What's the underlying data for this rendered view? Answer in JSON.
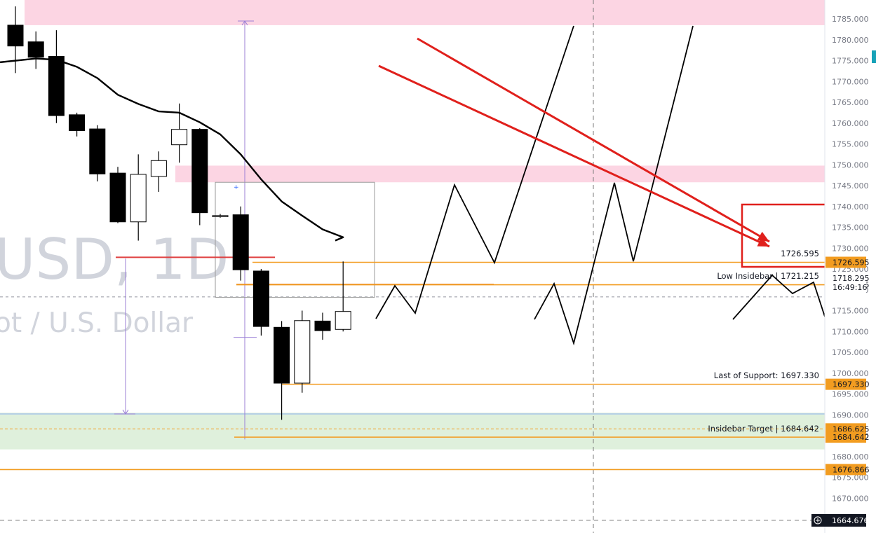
{
  "watermark": {
    "symbol": "USD, 1D",
    "description": "ot / U.S. Dollar"
  },
  "chart_data": {
    "type": "candlestick",
    "y_axis": {
      "range": [
        1664.676,
        1788
      ],
      "ticks": [
        1785,
        1780,
        1775,
        1770,
        1765,
        1760,
        1755,
        1750,
        1745,
        1740,
        1735,
        1730,
        1725,
        1720,
        1715,
        1710,
        1705,
        1700,
        1695,
        1690,
        1685,
        1680,
        1675,
        1670
      ],
      "tick_labels": [
        "1785.000",
        "1780.000",
        "1775.000",
        "1770.000",
        "1765.000",
        "1760.000",
        "1755.000",
        "1750.000",
        "1745.000",
        "1740.000",
        "1735.000",
        "1730.000",
        "1725.000",
        "1720.000",
        "1715.000",
        "1710.000",
        "1705.000",
        "1700.000",
        "1695.000",
        "1690.000",
        "1685.000",
        "1680.000",
        "1675.000",
        "1670.000"
      ]
    },
    "candles": [
      {
        "o": 1783.5,
        "h": 1788,
        "l": 1772,
        "c": 1778.5
      },
      {
        "o": 1779.5,
        "h": 1782,
        "l": 1773,
        "c": 1775.8
      },
      {
        "o": 1776,
        "h": 1782.3,
        "l": 1760,
        "c": 1761.8
      },
      {
        "o": 1762,
        "h": 1762.5,
        "l": 1756.8,
        "c": 1758.2
      },
      {
        "o": 1758.6,
        "h": 1759.5,
        "l": 1746,
        "c": 1747.8
      },
      {
        "o": 1748,
        "h": 1749.5,
        "l": 1736,
        "c": 1736.3
      },
      {
        "o": 1736.3,
        "h": 1752.5,
        "l": 1731.8,
        "c": 1747.7
      },
      {
        "o": 1747.2,
        "h": 1753.2,
        "l": 1743.5,
        "c": 1751
      },
      {
        "o": 1754.8,
        "h": 1764.7,
        "l": 1750.5,
        "c": 1758.5
      },
      {
        "o": 1758.5,
        "h": 1758.8,
        "l": 1735.5,
        "c": 1738.5
      },
      {
        "o": 1737.8,
        "h": 1738.2,
        "l": 1737.3,
        "c": 1737.8
      },
      {
        "o": 1738,
        "h": 1740,
        "l": 1722.2,
        "c": 1724.8
      },
      {
        "o": 1724.5,
        "h": 1725,
        "l": 1709,
        "c": 1711.2
      },
      {
        "o": 1711,
        "h": 1712.5,
        "l": 1688.8,
        "c": 1697.6
      },
      {
        "o": 1697.6,
        "h": 1715,
        "l": 1695.3,
        "c": 1712.6
      },
      {
        "o": 1712.5,
        "h": 1714.5,
        "l": 1708,
        "c": 1710.2
      },
      {
        "o": 1710.5,
        "h": 1726.8,
        "l": 1710,
        "c": 1714.8
      }
    ],
    "moving_average": [
      1774.6,
      1775.5,
      1775.2,
      1773.5,
      1770.8,
      1766.8,
      1764.6,
      1762.8,
      1762.5,
      1760.2,
      1757.3,
      1752.5,
      1746.5,
      1741.2,
      1737.8,
      1734.5,
      1732.6
    ],
    "price_lines": [
      {
        "price": 1726.595,
        "label": "1726.595",
        "annotation": "1726.595",
        "color": "#f29c20"
      },
      {
        "price": 1721.215,
        "label": "1721.215",
        "annotation": "Low Insidebar | 1721.215",
        "color": "#f29c20"
      },
      {
        "price": 1697.33,
        "label": "1697.330",
        "annotation": "Last of Support: 1697.330",
        "color": "#f29c20"
      },
      {
        "price": 1686.625,
        "label": "1686.625",
        "annotation": "",
        "color": "#f29c20"
      },
      {
        "price": 1684.642,
        "label": "1684.642",
        "annotation": "Insidebar Target | 1684.642",
        "color": "#f29c20"
      },
      {
        "price": 1676.866,
        "label": "1676.866",
        "annotation": "",
        "color": "#f29c20"
      }
    ],
    "current_price": {
      "price": 1718.295,
      "label": "1718.295",
      "countdown": "16:49:16"
    },
    "crosshair_price": {
      "price": 1664.676,
      "label": "1664.676"
    },
    "zones": [
      {
        "name": "resistance-zone-top",
        "from": 1783.5,
        "to": 1790,
        "color": "#fcd5e3"
      },
      {
        "name": "resistance-zone-mid",
        "from": 1745.8,
        "to": 1749.8,
        "color": "#fcd5e3"
      },
      {
        "name": "support-zone",
        "from": 1681.7,
        "to": 1690.5,
        "color": "#dff0dc"
      }
    ],
    "grid": false,
    "legend": "none"
  },
  "colors": {
    "price_line": "#f29c20",
    "arrow": "#e0201c",
    "bear_candle": "#000000",
    "bull_candle": "#ffffff",
    "ma_line": "#000000",
    "measure_line": "#9b7fd6"
  }
}
